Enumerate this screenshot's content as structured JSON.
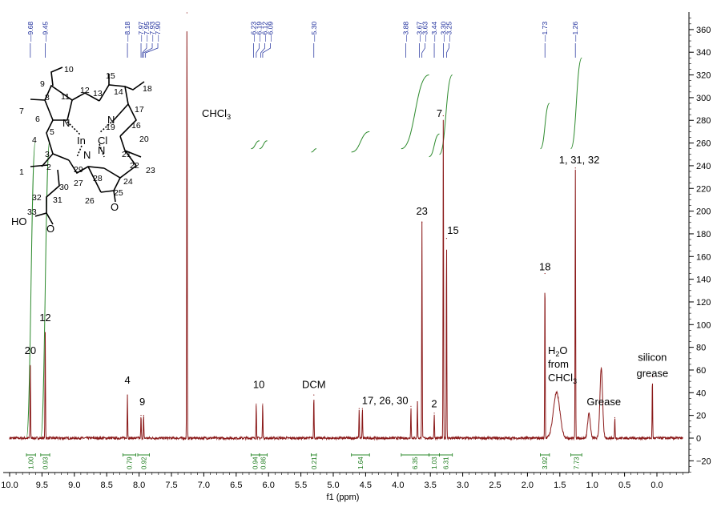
{
  "chart_data": {
    "type": "line",
    "xlabel": "f1 (ppm)",
    "xlim": [
      10.0,
      -0.4
    ],
    "ylim": [
      -30,
      380
    ],
    "x_ticks": [
      10.0,
      9.5,
      9.0,
      8.5,
      8.0,
      7.5,
      7.0,
      6.5,
      6.0,
      5.5,
      5.0,
      4.5,
      4.0,
      3.5,
      3.0,
      2.5,
      2.0,
      1.5,
      1.0,
      0.5,
      0.0
    ],
    "y_ticks": [
      -20,
      0,
      20,
      40,
      60,
      80,
      100,
      120,
      140,
      160,
      180,
      200,
      220,
      240,
      260,
      280,
      300,
      320,
      340,
      360
    ],
    "spectrum_color": "#8b1a1a",
    "integral_color": "#2e8b2e",
    "label_color": "#1a2a9a",
    "peaks": [
      {
        "ppm": 9.68,
        "h": 64
      },
      {
        "ppm": 9.45,
        "h": 93
      },
      {
        "ppm": 8.18,
        "h": 38
      },
      {
        "ppm": 7.97,
        "h": 20
      },
      {
        "ppm": 7.93,
        "h": 20
      },
      {
        "ppm": 7.26,
        "h": 380
      },
      {
        "ppm": 6.19,
        "h": 30
      },
      {
        "ppm": 6.09,
        "h": 30
      },
      {
        "ppm": 5.3,
        "h": 38
      },
      {
        "ppm": 4.6,
        "h": 26
      },
      {
        "ppm": 4.55,
        "h": 26
      },
      {
        "ppm": 3.8,
        "h": 28
      },
      {
        "ppm": 3.7,
        "h": 32
      },
      {
        "ppm": 3.63,
        "h": 190
      },
      {
        "ppm": 3.44,
        "h": 22
      },
      {
        "ppm": 3.3,
        "h": 284
      },
      {
        "ppm": 3.25,
        "h": 176
      },
      {
        "ppm": 1.73,
        "h": 145
      },
      {
        "ppm": 1.55,
        "h": 40
      },
      {
        "ppm": 1.26,
        "h": 238
      },
      {
        "ppm": 1.05,
        "h": 22
      },
      {
        "ppm": 0.86,
        "h": 62
      },
      {
        "ppm": 0.65,
        "h": 18
      },
      {
        "ppm": 0.07,
        "h": 54
      }
    ],
    "shift_labels": [
      "9.68",
      "9.45",
      "8.18",
      "7.97",
      "7.95",
      "7.93",
      "7.90",
      "6.23",
      "6.19",
      "6.12",
      "6.09",
      "5.30",
      "3.88",
      "3.67",
      "3.63",
      "3.44",
      "3.30",
      "3.25",
      "1.73",
      "1.26"
    ],
    "shift_label_ppm": [
      9.68,
      9.45,
      8.18,
      7.97,
      7.95,
      7.93,
      7.9,
      6.23,
      6.19,
      6.12,
      6.09,
      5.3,
      3.88,
      3.67,
      3.63,
      3.44,
      3.3,
      3.25,
      1.73,
      1.26
    ],
    "annotations": [
      {
        "text": "20",
        "ppm": 9.68,
        "y": 74
      },
      {
        "text": "12",
        "ppm": 9.45,
        "y": 103
      },
      {
        "text": "4",
        "ppm": 8.18,
        "y": 48
      },
      {
        "text": "9",
        "ppm": 7.95,
        "y": 29
      },
      {
        "text": "10",
        "ppm": 6.15,
        "y": 44
      },
      {
        "text": "DCM",
        "ppm": 5.3,
        "y": 44
      },
      {
        "text": "17, 26, 30",
        "ppm": 4.2,
        "y": 30
      },
      {
        "text": "2",
        "ppm": 3.44,
        "y": 27
      },
      {
        "text": "23",
        "ppm": 3.63,
        "y": 197
      },
      {
        "text": "15",
        "ppm": 3.15,
        "y": 180
      },
      {
        "text": "7",
        "ppm": 3.36,
        "y": 283
      },
      {
        "text": "18",
        "ppm": 1.73,
        "y": 148
      },
      {
        "text": "1, 31, 32",
        "ppm": 1.2,
        "y": 242
      },
      {
        "text": "Grease",
        "ppm": 0.82,
        "y": 29
      },
      {
        "text": "silicon",
        "ppm": 0.07,
        "y": 68
      },
      {
        "text": "grease",
        "ppm": 0.07,
        "y": 54
      }
    ],
    "solvent_labels": {
      "chcl3": "CHCl",
      "chcl3_sub": "3",
      "h2o_h": "H",
      "h2o_sub": "2",
      "h2o_o": "O",
      "from": "from",
      "chcl": "CHCl",
      "chcl_sub": "3"
    },
    "integrals": [
      {
        "from": 9.74,
        "to": 9.6,
        "value": "1.00"
      },
      {
        "from": 9.52,
        "to": 9.38,
        "value": "0.93"
      },
      {
        "from": 8.25,
        "to": 8.05,
        "value": "0.79"
      },
      {
        "from": 8.02,
        "to": 7.84,
        "value": "0.92"
      },
      {
        "from": 6.27,
        "to": 6.14,
        "value": "0.94"
      },
      {
        "from": 6.14,
        "to": 6.02,
        "value": "0.86"
      },
      {
        "from": 5.34,
        "to": 5.26,
        "value": "0.21"
      },
      {
        "from": 4.72,
        "to": 4.44,
        "value": "1.64"
      },
      {
        "from": 3.95,
        "to": 3.52,
        "value": "6.35"
      },
      {
        "from": 3.52,
        "to": 3.36,
        "value": "1.03"
      },
      {
        "from": 3.36,
        "to": 3.16,
        "value": "6.31"
      },
      {
        "from": 1.8,
        "to": 1.66,
        "value": "3.92"
      },
      {
        "from": 1.33,
        "to": 1.16,
        "value": "7.73"
      }
    ],
    "structure_labels": {
      "n9": "9",
      "n10": "10",
      "n12": "12",
      "n13": "13",
      "n15": "15",
      "n18": "18",
      "n7": "7",
      "n8": "8",
      "n11": "11",
      "n14": "14",
      "n17": "17",
      "n6": "6",
      "n5": "5",
      "n16": "16",
      "n19": "19",
      "n20": "20",
      "n4": "4",
      "n3": "3",
      "n21": "21",
      "n1": "1",
      "n2": "2",
      "n22": "22",
      "n23": "23",
      "n29": "29",
      "n30": "30",
      "n28": "28",
      "n24": "24",
      "n27": "27",
      "n32": "32",
      "n31": "31",
      "n26": "26",
      "n25": "25",
      "n33": "33",
      "ho": "HO",
      "o_acid": "O",
      "o_ketone": "O",
      "metal": "In",
      "chloride": "Cl",
      "N1": "N",
      "N2": "N",
      "N3": "N",
      "N4": "N"
    }
  }
}
